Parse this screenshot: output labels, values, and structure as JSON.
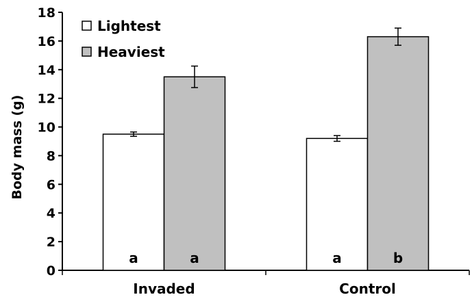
{
  "chart_data": {
    "type": "bar",
    "title": "",
    "xlabel": "",
    "ylabel": "Body mass (g)",
    "ylim": [
      0,
      18
    ],
    "yticks": [
      0,
      2,
      4,
      6,
      8,
      10,
      12,
      14,
      16,
      18
    ],
    "categories": [
      "Invaded",
      "Control"
    ],
    "series": [
      {
        "name": "Lightest",
        "color": "#ffffff",
        "values": [
          9.5,
          9.2
        ],
        "errors": [
          0.15,
          0.2
        ],
        "significance": [
          "a",
          "a"
        ]
      },
      {
        "name": "Heaviest",
        "color": "#c0c0c0",
        "values": [
          13.5,
          16.3
        ],
        "errors": [
          0.75,
          0.6
        ],
        "significance": [
          "a",
          "b"
        ]
      }
    ],
    "legend_position": "top-left",
    "grid": false
  }
}
